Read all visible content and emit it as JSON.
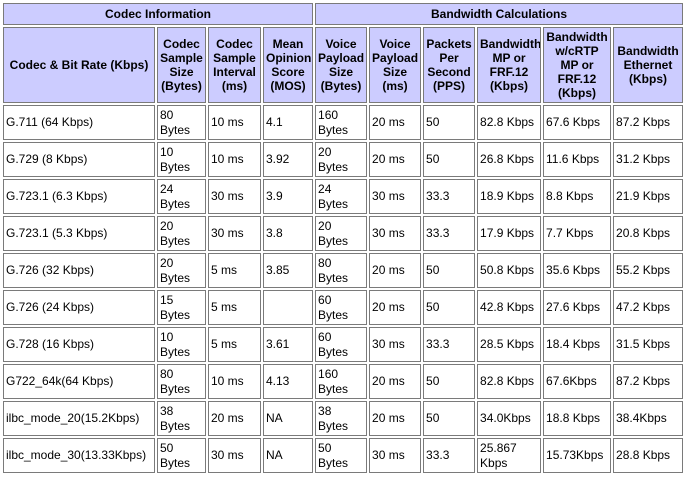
{
  "groups": {
    "codec_information": "Codec Information",
    "bandwidth_calculations": "Bandwidth Calculations"
  },
  "columns": [
    "Codec & Bit Rate (Kbps)",
    "Codec Sample Size (Bytes)",
    "Codec Sample Interval (ms)",
    "Mean Opinion Score (MOS)",
    "Voice Payload Size (Bytes)",
    "Voice Payload Size (ms)",
    "Packets Per Second (PPS)",
    "Bandwidth MP or FRF.12 (Kbps)",
    "Bandwidth w/cRTP MP or FRF.12 (Kbps)",
    "Bandwidth Ethernet (Kbps)"
  ],
  "rows": [
    [
      "G.711 (64 Kbps)",
      "80 Bytes",
      "10 ms",
      "4.1",
      "160 Bytes",
      "20 ms",
      "50",
      "82.8 Kbps",
      "67.6 Kbps",
      "87.2 Kbps"
    ],
    [
      "G.729 (8 Kbps)",
      "10 Bytes",
      "10 ms",
      "3.92",
      "20 Bytes",
      "20 ms",
      "50",
      "26.8 Kbps",
      "11.6 Kbps",
      "31.2 Kbps"
    ],
    [
      "G.723.1 (6.3 Kbps)",
      "24 Bytes",
      "30 ms",
      "3.9",
      "24 Bytes",
      "30 ms",
      "33.3",
      "18.9 Kbps",
      "8.8 Kbps",
      "21.9 Kbps"
    ],
    [
      "G.723.1 (5.3 Kbps)",
      "20 Bytes",
      "30 ms",
      "3.8",
      "20 Bytes",
      "30 ms",
      "33.3",
      "17.9 Kbps",
      "7.7 Kbps",
      "20.8 Kbps"
    ],
    [
      "G.726 (32 Kbps)",
      "20 Bytes",
      "5 ms",
      "3.85",
      "80 Bytes",
      "20 ms",
      "50",
      "50.8 Kbps",
      "35.6 Kbps",
      "55.2 Kbps"
    ],
    [
      "G.726 (24 Kbps)",
      "15 Bytes",
      "5 ms",
      "",
      "60 Bytes",
      "20 ms",
      "50",
      "42.8 Kbps",
      "27.6 Kbps",
      "47.2 Kbps"
    ],
    [
      "G.728 (16 Kbps)",
      "10 Bytes",
      "5 ms",
      "3.61",
      "60 Bytes",
      "30 ms",
      "33.3",
      "28.5 Kbps",
      "18.4 Kbps",
      "31.5 Kbps"
    ],
    [
      "G722_64k(64 Kbps)",
      "80 Bytes",
      "10 ms",
      "4.13",
      "160 Bytes",
      "20 ms",
      "50",
      "82.8 Kbps",
      "67.6Kbps",
      "87.2 Kbps"
    ],
    [
      "ilbc_mode_20(15.2Kbps)",
      "38 Bytes",
      "20 ms",
      "NA",
      "38 Bytes",
      "20 ms",
      "50",
      "34.0Kbps",
      "18.8 Kbps",
      "38.4Kbps"
    ],
    [
      "ilbc_mode_30(13.33Kbps)",
      "50 Bytes",
      "30 ms",
      "NA",
      "50 Bytes",
      "30 ms",
      "33.3",
      "25.867 Kbps",
      "15.73Kbps",
      "28.8 Kbps"
    ]
  ]
}
